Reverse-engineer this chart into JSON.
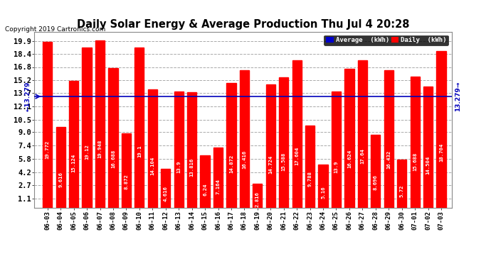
{
  "title": "Daily Solar Energy & Average Production Thu Jul 4 20:28",
  "copyright": "Copyright 2019 Cartronics.com",
  "average": 13.279,
  "bar_color": "#ff0000",
  "average_line_color": "#0000bb",
  "background_color": "#ffffff",
  "plot_bg_color": "#ffffff",
  "categories": [
    "06-03",
    "06-04",
    "06-05",
    "06-06",
    "06-07",
    "06-08",
    "06-09",
    "06-10",
    "06-11",
    "06-12",
    "06-13",
    "06-14",
    "06-15",
    "06-16",
    "06-17",
    "06-18",
    "06-19",
    "06-20",
    "06-21",
    "06-22",
    "06-23",
    "06-24",
    "06-25",
    "06-26",
    "06-27",
    "06-28",
    "06-29",
    "06-30",
    "07-01",
    "07-02",
    "07-03"
  ],
  "values": [
    19.772,
    9.616,
    15.124,
    19.12,
    19.948,
    16.688,
    8.872,
    19.1,
    14.104,
    4.616,
    13.9,
    13.816,
    6.24,
    7.164,
    14.872,
    16.416,
    2.816,
    14.724,
    15.588,
    17.604,
    9.788,
    5.16,
    13.9,
    16.624,
    17.64,
    8.696,
    16.432,
    5.72,
    15.688,
    14.504,
    18.704
  ],
  "yticks": [
    1.1,
    2.7,
    4.2,
    5.8,
    7.4,
    9.0,
    10.5,
    12.1,
    13.7,
    15.2,
    16.8,
    18.4,
    19.9
  ],
  "ylim": [
    0,
    21.0
  ],
  "legend_avg_color": "#0000cc",
  "legend_daily_color": "#ff0000",
  "legend_avg_text": "Average  (kWh)",
  "legend_daily_text": "Daily  (kWh)",
  "avg_label": "13.279"
}
